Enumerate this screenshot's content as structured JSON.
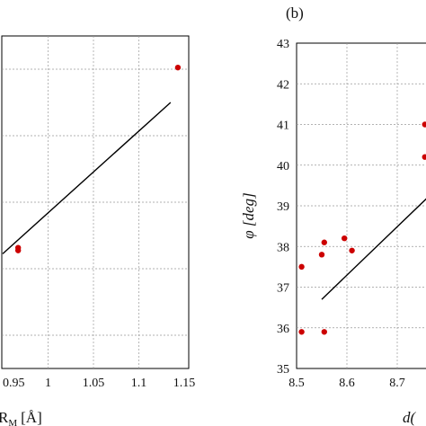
{
  "chart_data": [
    {
      "type": "scatter",
      "panel_label": "",
      "xlabel": "R",
      "xlabel_sub": "M",
      "xlabel_unit": "[Å]",
      "ylabel": "",
      "xlim": [
        0.95,
        1.15
      ],
      "x_ticks": [
        "0.95",
        "1",
        "1.05",
        "1.1",
        "1.15"
      ],
      "x_tick_values": [
        0.95,
        1.0,
        1.05,
        1.1,
        1.15
      ],
      "grid": true,
      "points": [
        {
          "x": 0.967,
          "y": 0.355
        },
        {
          "x": 0.967,
          "y": 0.363
        },
        {
          "x": 1.143,
          "y": 0.905
        }
      ],
      "fit_line": [
        {
          "x": 0.95,
          "y": 0.345
        },
        {
          "x": 1.135,
          "y": 0.8
        }
      ],
      "marker_color": "#cc0000",
      "line_color": "#000000"
    },
    {
      "type": "scatter",
      "panel_label": "(b)",
      "xlabel": "d(",
      "ylabel": "φ [deg]",
      "xlim": [
        8.5,
        8.8
      ],
      "ylim": [
        35,
        43
      ],
      "x_ticks": [
        "8.5",
        "8.6",
        "8.7"
      ],
      "x_tick_values": [
        8.5,
        8.6,
        8.7
      ],
      "y_ticks": [
        "35",
        "36",
        "37",
        "38",
        "39",
        "40",
        "41",
        "42",
        "43"
      ],
      "y_tick_values": [
        35,
        36,
        37,
        38,
        39,
        40,
        41,
        42,
        43
      ],
      "grid": true,
      "points": [
        {
          "x": 8.51,
          "y": 37.5
        },
        {
          "x": 8.51,
          "y": 35.9
        },
        {
          "x": 8.55,
          "y": 37.8
        },
        {
          "x": 8.555,
          "y": 38.1
        },
        {
          "x": 8.555,
          "y": 35.9
        },
        {
          "x": 8.595,
          "y": 38.2
        },
        {
          "x": 8.61,
          "y": 37.9
        },
        {
          "x": 8.755,
          "y": 41.0
        },
        {
          "x": 8.755,
          "y": 40.2
        }
      ],
      "fit_line": [
        {
          "x": 8.55,
          "y": 36.7
        },
        {
          "x": 8.76,
          "y": 39.2
        }
      ],
      "marker_color": "#cc0000",
      "line_color": "#000000"
    }
  ]
}
